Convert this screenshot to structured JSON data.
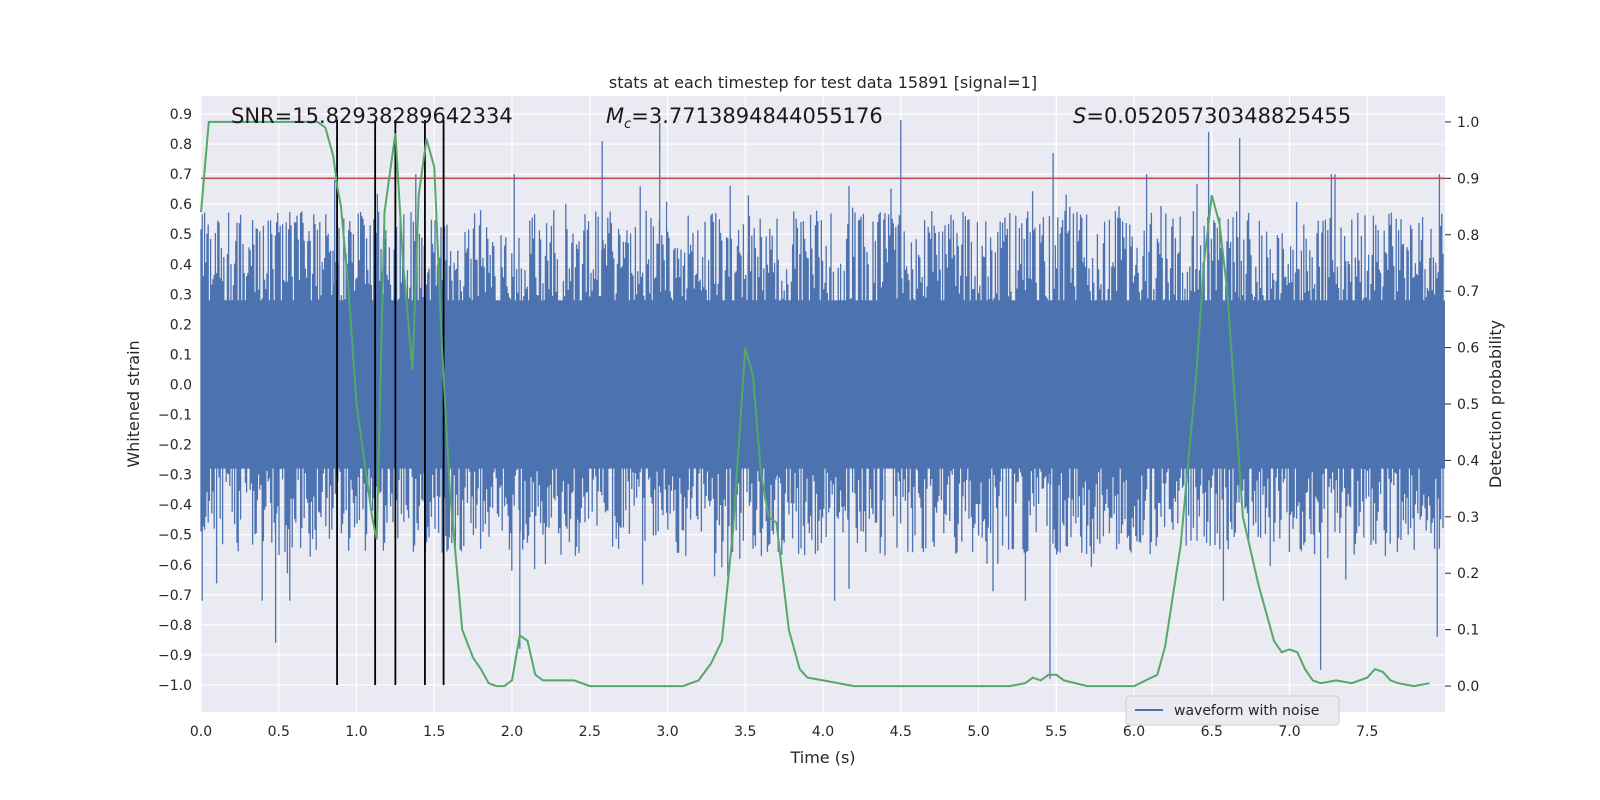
{
  "chart_data": {
    "type": "line",
    "title": "stats at each timestep for test data 15891 [signal=1]",
    "xlabel": "Time (s)",
    "ylabel": "Whitened strain",
    "y2label": "Detection probability",
    "xlim": [
      0.0,
      8.0
    ],
    "ylim": [
      -1.09,
      0.96
    ],
    "y2lim": [
      -0.046,
      1.046
    ],
    "xticks": [
      "0.0",
      "0.5",
      "1.0",
      "1.5",
      "2.0",
      "2.5",
      "3.0",
      "3.5",
      "4.0",
      "4.5",
      "5.0",
      "5.5",
      "6.0",
      "6.5",
      "7.0",
      "7.5"
    ],
    "yticks": [
      "0.9",
      "0.8",
      "0.7",
      "0.6",
      "0.5",
      "0.4",
      "0.3",
      "0.2",
      "0.1",
      "0.0",
      "-0.1",
      "-0.2",
      "-0.3",
      "-0.4",
      "-0.5",
      "-0.6",
      "-0.7",
      "-0.8",
      "-0.9",
      "-1.0"
    ],
    "y2ticks": [
      "1.0",
      "0.9",
      "0.8",
      "0.7",
      "0.6",
      "0.5",
      "0.4",
      "0.3",
      "0.2",
      "0.1",
      "0.0"
    ],
    "grid": true,
    "legend_position": "lower-right",
    "annotations": {
      "snr": "SNR=15.82938289642334",
      "mc_symbol": "M",
      "mc_sub": "c",
      "mc_value": "=3.7713894844055176",
      "s_symbol": "S",
      "s_value": "=0.05205730348825455"
    },
    "series": [
      {
        "name": "waveform with noise",
        "axis": "left",
        "kind": "noise-band",
        "color": "#4c72b0",
        "band_core": [
          -0.42,
          0.43
        ],
        "approx_extremes": [
          {
            "x": 0.48,
            "y": -0.86
          },
          {
            "x": 0.86,
            "y": 0.68
          },
          {
            "x": 1.12,
            "y": -0.76
          },
          {
            "x": 1.25,
            "y": 0.71
          },
          {
            "x": 1.44,
            "y": -0.76
          },
          {
            "x": 2.05,
            "y": -0.88
          },
          {
            "x": 2.58,
            "y": 0.81
          },
          {
            "x": 2.95,
            "y": 0.87
          },
          {
            "x": 3.52,
            "y": 0.63
          },
          {
            "x": 4.5,
            "y": 0.88
          },
          {
            "x": 5.46,
            "y": -0.98
          },
          {
            "x": 5.48,
            "y": 0.77
          },
          {
            "x": 6.48,
            "y": 0.84
          },
          {
            "x": 6.68,
            "y": 0.82
          },
          {
            "x": 7.2,
            "y": -0.95
          },
          {
            "x": 7.95,
            "y": -0.84
          }
        ]
      },
      {
        "name": "",
        "axis": "right",
        "color": "#55a868",
        "x": [
          0.0,
          0.05,
          0.1,
          0.2,
          0.3,
          0.4,
          0.5,
          0.6,
          0.7,
          0.75,
          0.8,
          0.85,
          0.88,
          0.9,
          0.95,
          1.0,
          1.05,
          1.1,
          1.13,
          1.18,
          1.25,
          1.3,
          1.36,
          1.4,
          1.45,
          1.5,
          1.55,
          1.6,
          1.68,
          1.75,
          1.8,
          1.85,
          1.9,
          1.95,
          2.0,
          2.05,
          2.1,
          2.15,
          2.2,
          2.3,
          2.4,
          2.5,
          2.6,
          2.8,
          3.0,
          3.1,
          3.15,
          3.2,
          3.28,
          3.35,
          3.42,
          3.5,
          3.55,
          3.6,
          3.65,
          3.7,
          3.78,
          3.85,
          3.9,
          4.0,
          4.2,
          4.5,
          5.0,
          5.2,
          5.3,
          5.35,
          5.4,
          5.45,
          5.5,
          5.55,
          5.7,
          6.0,
          6.15,
          6.2,
          6.3,
          6.4,
          6.45,
          6.5,
          6.55,
          6.6,
          6.7,
          6.8,
          6.9,
          6.95,
          7.0,
          7.05,
          7.1,
          7.15,
          7.2,
          7.3,
          7.4,
          7.5,
          7.55,
          7.6,
          7.65,
          7.7,
          7.8,
          7.9
        ],
        "values": [
          0.84,
          1.0,
          1.0,
          1.0,
          1.0,
          1.0,
          1.0,
          1.0,
          1.0,
          1.0,
          0.99,
          0.94,
          0.88,
          0.85,
          0.7,
          0.5,
          0.4,
          0.3,
          0.26,
          0.84,
          0.98,
          0.75,
          0.56,
          0.87,
          0.97,
          0.92,
          0.6,
          0.35,
          0.1,
          0.05,
          0.03,
          0.005,
          0.0,
          0.0,
          0.01,
          0.09,
          0.08,
          0.02,
          0.01,
          0.01,
          0.01,
          0.0,
          0.0,
          0.0,
          0.0,
          0.0,
          0.005,
          0.01,
          0.04,
          0.08,
          0.27,
          0.6,
          0.55,
          0.38,
          0.3,
          0.29,
          0.1,
          0.03,
          0.015,
          0.01,
          0.0,
          0.0,
          0.0,
          0.0,
          0.005,
          0.015,
          0.01,
          0.02,
          0.02,
          0.01,
          0.0,
          0.0,
          0.02,
          0.07,
          0.25,
          0.55,
          0.75,
          0.87,
          0.82,
          0.7,
          0.3,
          0.18,
          0.08,
          0.06,
          0.065,
          0.06,
          0.03,
          0.01,
          0.005,
          0.01,
          0.005,
          0.015,
          0.03,
          0.025,
          0.01,
          0.005,
          0.0,
          0.005
        ]
      },
      {
        "name": "",
        "axis": "right",
        "kind": "hline",
        "color": "#c44e52",
        "value": 0.9
      },
      {
        "name": "",
        "axis": "left",
        "kind": "vlines",
        "color": "#000000",
        "x": [
          0.875,
          1.12,
          1.25,
          1.44,
          1.56
        ],
        "y_from": -1.0,
        "y_to": 0.88
      }
    ]
  }
}
